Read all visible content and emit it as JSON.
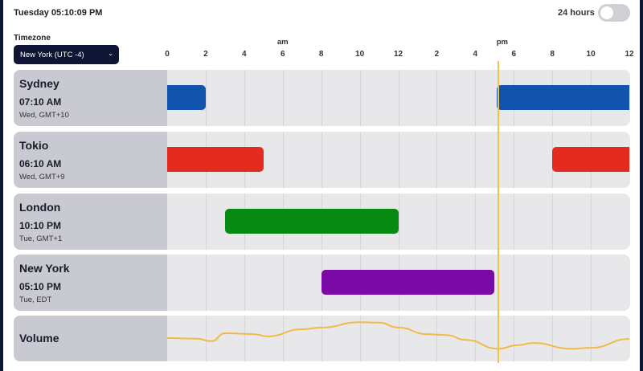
{
  "header": {
    "clock": "Tuesday 05:10:09 PM",
    "toggle_label": "24 hours",
    "toggle_on": false
  },
  "timezone": {
    "label": "Timezone",
    "selected": "New York (UTC -4)"
  },
  "axis": {
    "ticks": [
      "0",
      "2",
      "4",
      "6",
      "8",
      "10",
      "12",
      "2",
      "4",
      "6",
      "8",
      "10",
      "12"
    ],
    "am": "am",
    "pm": "pm",
    "current_hour": 17.17
  },
  "rows": [
    {
      "city": "Sydney",
      "time": "07:10 AM",
      "sub": "Wed, GMT+10",
      "color": "#1254ad",
      "bars": [
        [
          0,
          2
        ],
        [
          17.1,
          24
        ]
      ]
    },
    {
      "city": "Tokio",
      "time": "06:10 AM",
      "sub": "Wed, GMT+9",
      "color": "#e32b1f",
      "bars": [
        [
          0,
          5
        ],
        [
          20,
          24
        ]
      ]
    },
    {
      "city": "London",
      "time": "10:10 PM",
      "sub": "Tue, GMT+1",
      "color": "#078a12",
      "bars": [
        [
          3,
          12
        ]
      ]
    },
    {
      "city": "New York",
      "time": "05:10 PM",
      "sub": "Tue, EDT",
      "color": "#7a0aa6",
      "bars": [
        [
          8,
          17
        ]
      ]
    }
  ],
  "volume": {
    "label": "Volume",
    "color": "#f2b94a",
    "points": [
      [
        0,
        49
      ],
      [
        1.5,
        48
      ],
      [
        2.3,
        42
      ],
      [
        3,
        60
      ],
      [
        4.5,
        58
      ],
      [
        5.2,
        53
      ],
      [
        7,
        69
      ],
      [
        8,
        73
      ],
      [
        10,
        85
      ],
      [
        11,
        84
      ],
      [
        12,
        73
      ],
      [
        13.5,
        58
      ],
      [
        14.5,
        56
      ],
      [
        15.5,
        45
      ],
      [
        17.2,
        25
      ],
      [
        18.2,
        33
      ],
      [
        19,
        38
      ],
      [
        21,
        25
      ],
      [
        22,
        27
      ],
      [
        24,
        47
      ]
    ]
  }
}
